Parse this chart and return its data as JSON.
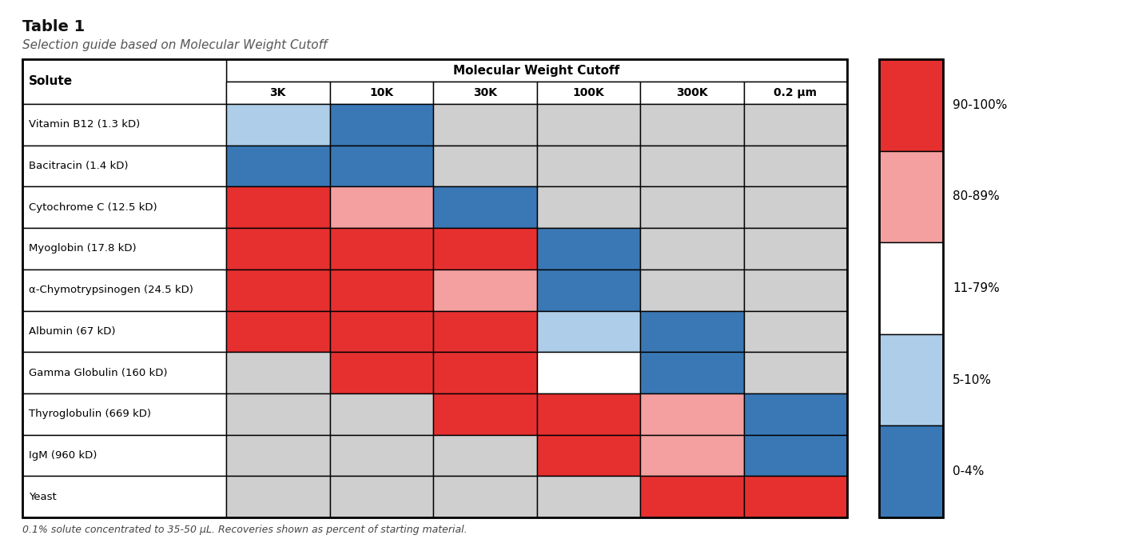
{
  "title": "Table 1",
  "subtitle": "Selection guide based on Molecular Weight Cutoff",
  "footnote": "0.1% solute concentrated to 35-50 μL. Recoveries shown as percent of starting material.",
  "col_header_main": "Molecular Weight Cutoff",
  "col_headers": [
    "3K",
    "10K",
    "30K",
    "100K",
    "300K",
    "0.2 μm"
  ],
  "row_headers": [
    "Vitamin B12 (1.3 kD)",
    "Bacitracin (1.4 kD)",
    "Cytochrome C (12.5 kD)",
    "Myoglobin (17.8 kD)",
    "α-Chymotrypsinogen (24.5 kD)",
    "Albumin (67 kD)",
    "Gamma Globulin (160 kD)",
    "Thyroglobulin (669 kD)",
    "IgM (960 kD)",
    "Yeast"
  ],
  "colors": {
    "red": "#E63030",
    "pink": "#F4A0A0",
    "white": "#FFFFFF",
    "light_blue": "#AECDE8",
    "blue": "#3A78B5",
    "gray": "#D0CFCF"
  },
  "cell_colors": [
    [
      "light_blue",
      "blue",
      "gray",
      "gray",
      "gray",
      "gray"
    ],
    [
      "blue",
      "blue",
      "gray",
      "gray",
      "gray",
      "gray"
    ],
    [
      "red",
      "pink",
      "blue",
      "gray",
      "gray",
      "gray"
    ],
    [
      "red",
      "red",
      "red",
      "blue",
      "gray",
      "gray"
    ],
    [
      "red",
      "red",
      "pink",
      "blue",
      "gray",
      "gray"
    ],
    [
      "red",
      "red",
      "red",
      "light_blue",
      "blue",
      "gray"
    ],
    [
      "gray",
      "red",
      "red",
      "white",
      "blue",
      "gray"
    ],
    [
      "gray",
      "gray",
      "red",
      "red",
      "pink",
      "blue"
    ],
    [
      "gray",
      "gray",
      "gray",
      "red",
      "pink",
      "blue"
    ],
    [
      "gray",
      "gray",
      "gray",
      "gray",
      "red",
      "red"
    ]
  ],
  "legend_items": [
    {
      "color": "red",
      "label": "90-100%"
    },
    {
      "color": "pink",
      "label": "80-89%"
    },
    {
      "color": "white",
      "label": "11-79%"
    },
    {
      "color": "light_blue",
      "label": "5-10%"
    },
    {
      "color": "blue",
      "label": "0-4%"
    }
  ],
  "background_color": "#FFFFFF"
}
